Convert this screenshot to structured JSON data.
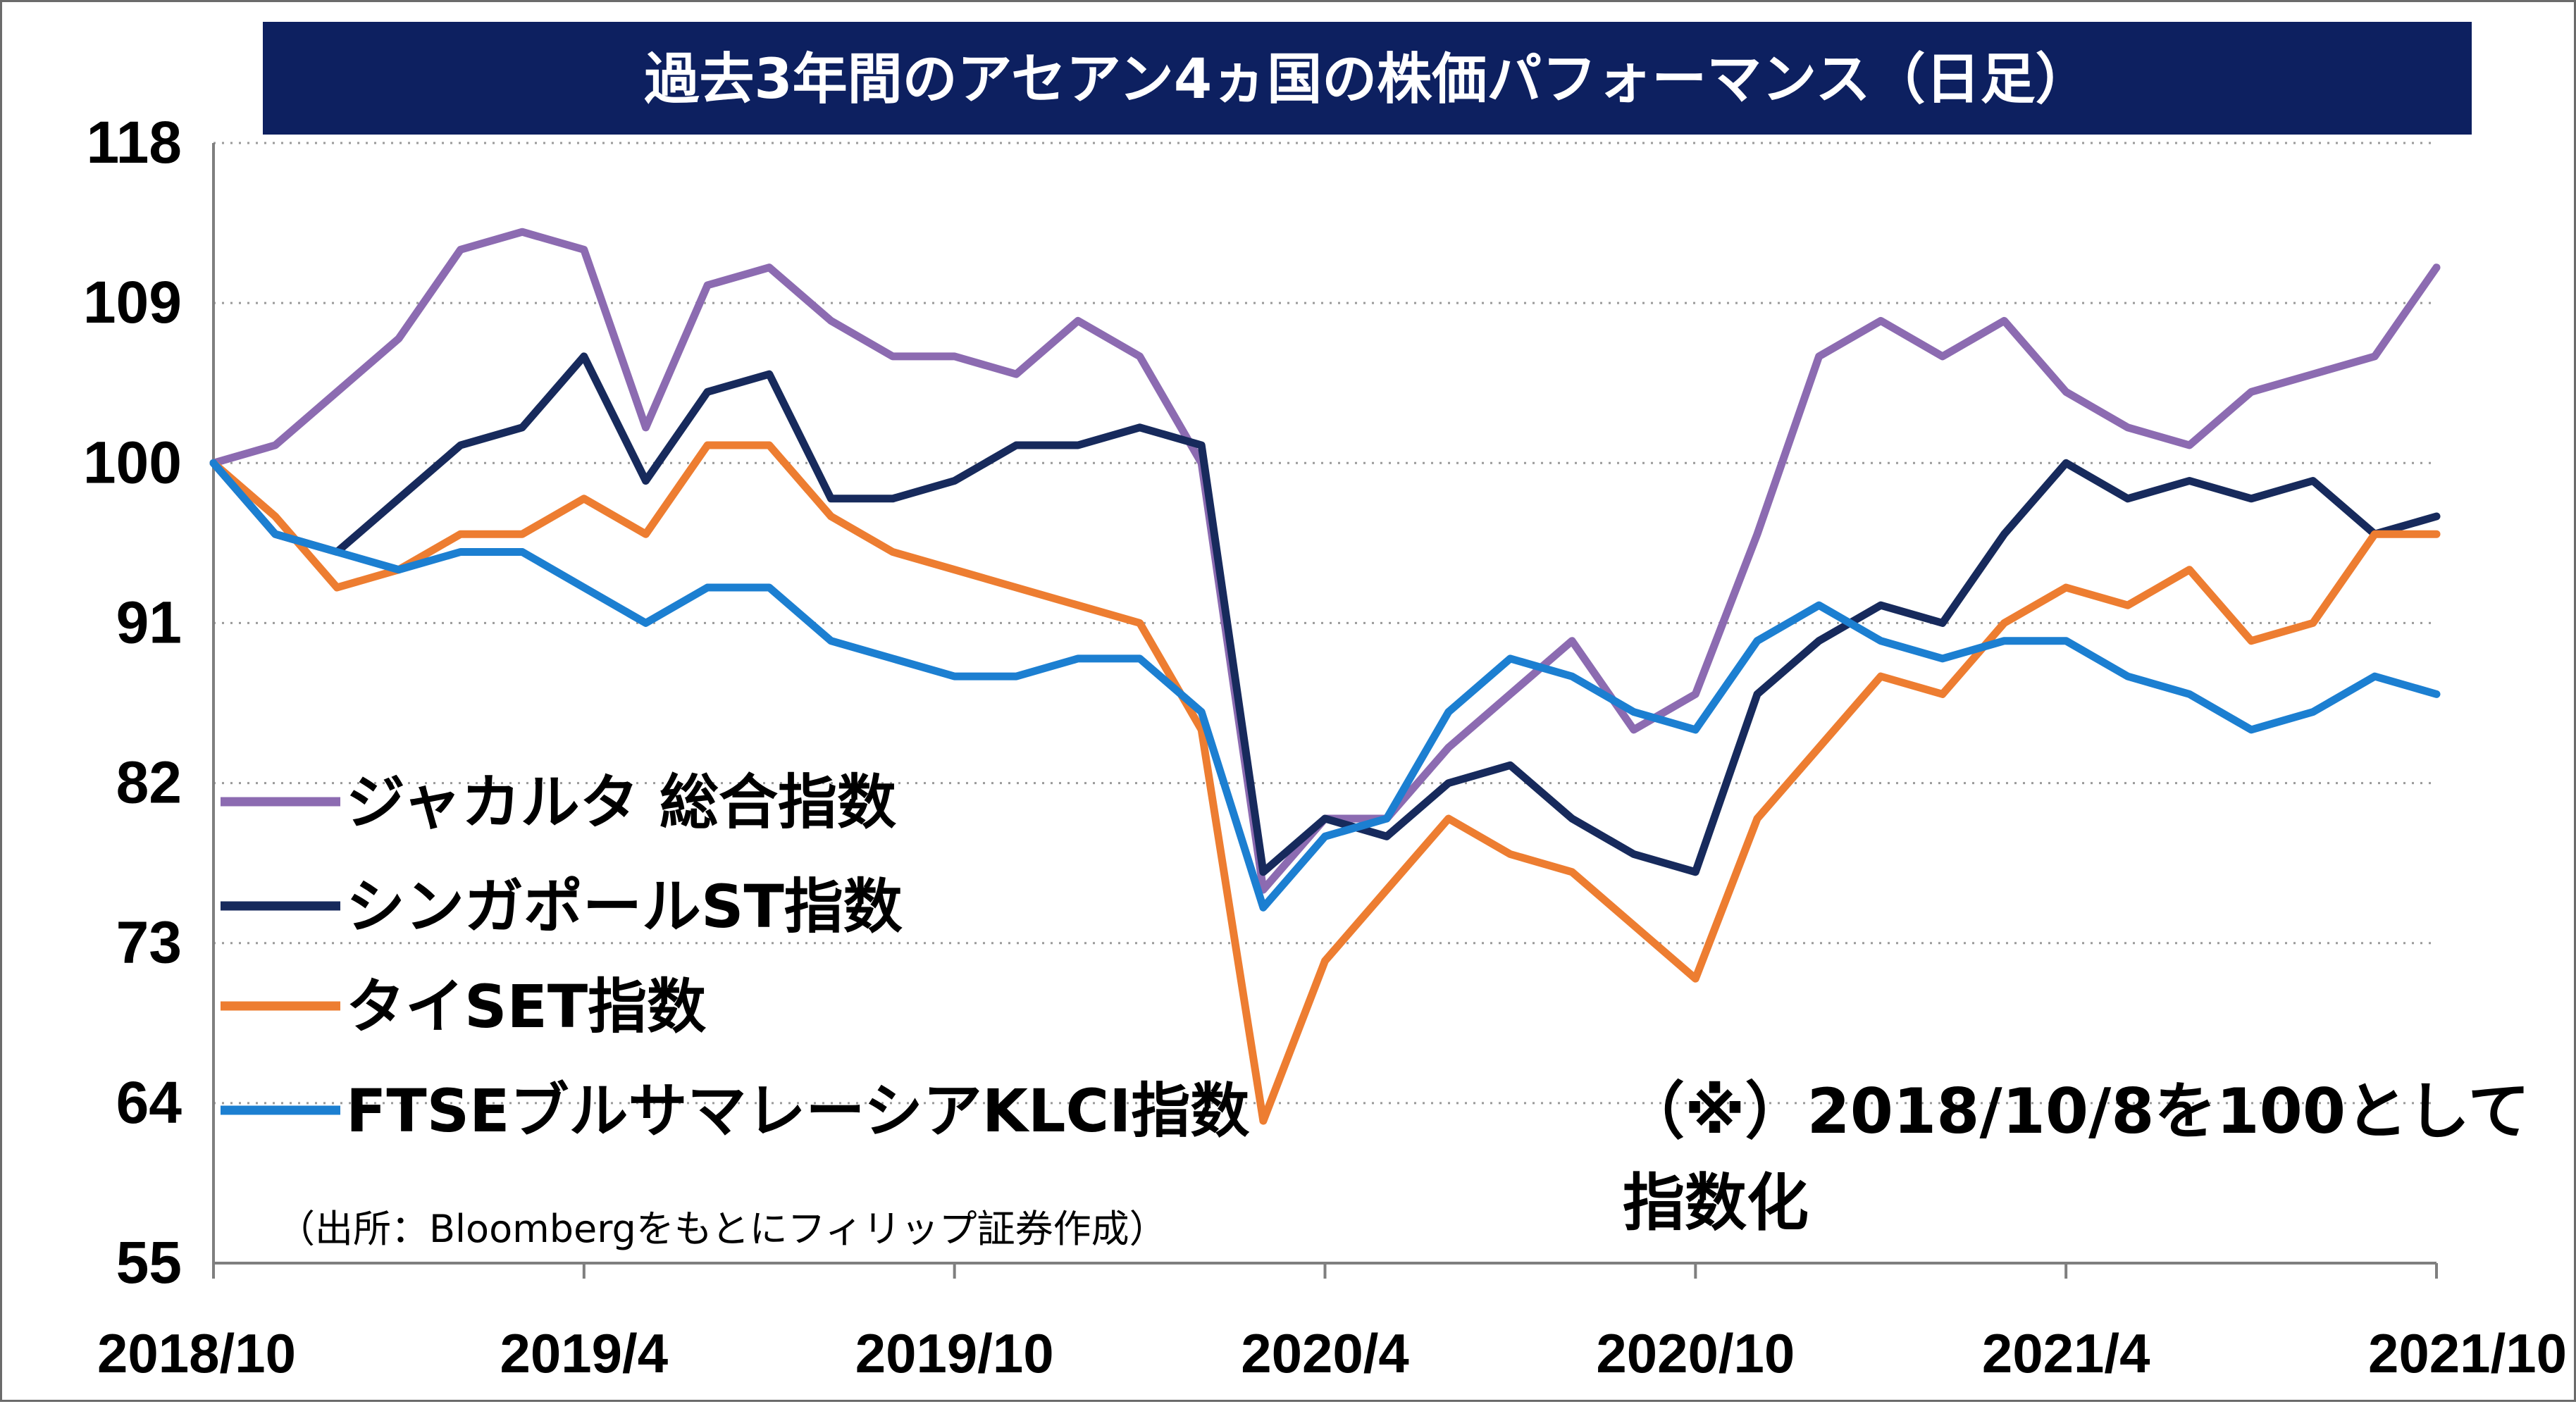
{
  "chart_data": {
    "type": "line",
    "title": "過去3年間のアセアン4ヵ国の株価パフォーマンス（日足）",
    "xlabel": "",
    "ylabel": "",
    "ylim": [
      55,
      118
    ],
    "y_ticks": [
      118,
      109,
      100,
      91,
      82,
      73,
      64,
      55
    ],
    "x_ticks": [
      "2018/10",
      "2019/4",
      "2019/10",
      "2020/4",
      "2020/10",
      "2021/4",
      "2021/10"
    ],
    "grid": true,
    "grid_style": "dotted horizontal",
    "legend_position": "center-left",
    "annotation": [
      "（※）2018/10/8を100として",
      "指数化"
    ],
    "source": "（出所：Bloombergをもとにフィリップ証券作成）",
    "x_axis_start": "2018/10",
    "x_axis_end": "2021/10",
    "series": [
      {
        "name": "ジャカルタ 総合指数",
        "color": "#8c6bb1",
        "points": [
          [
            "2018/10",
            100
          ],
          [
            "2018/11",
            101
          ],
          [
            "2018/12",
            104
          ],
          [
            "2019/1",
            107
          ],
          [
            "2019/2",
            112
          ],
          [
            "2019/3",
            113
          ],
          [
            "2019/4",
            112
          ],
          [
            "2019/5",
            102
          ],
          [
            "2019/6",
            110
          ],
          [
            "2019/7",
            111
          ],
          [
            "2019/8",
            108
          ],
          [
            "2019/9",
            106
          ],
          [
            "2019/10",
            106
          ],
          [
            "2019/11",
            105
          ],
          [
            "2019/12",
            108
          ],
          [
            "2020/1",
            106
          ],
          [
            "2020/2",
            100
          ],
          [
            "2020/3",
            76
          ],
          [
            "2020/4",
            80
          ],
          [
            "2020/5",
            80
          ],
          [
            "2020/6",
            84
          ],
          [
            "2020/7",
            87
          ],
          [
            "2020/8",
            90
          ],
          [
            "2020/9",
            85
          ],
          [
            "2020/10",
            87
          ],
          [
            "2020/11",
            96
          ],
          [
            "2020/12",
            106
          ],
          [
            "2021/1",
            108
          ],
          [
            "2021/2",
            106
          ],
          [
            "2021/3",
            108
          ],
          [
            "2021/4",
            104
          ],
          [
            "2021/5",
            102
          ],
          [
            "2021/6",
            101
          ],
          [
            "2021/7",
            104
          ],
          [
            "2021/8",
            105
          ],
          [
            "2021/9",
            106
          ],
          [
            "2021/10",
            111
          ]
        ]
      },
      {
        "name": "シンガポールST指数",
        "color": "#172a5c",
        "points": [
          [
            "2018/10",
            100
          ],
          [
            "2018/11",
            96
          ],
          [
            "2018/12",
            95
          ],
          [
            "2019/1",
            98
          ],
          [
            "2019/2",
            101
          ],
          [
            "2019/3",
            102
          ],
          [
            "2019/4",
            106
          ],
          [
            "2019/5",
            99
          ],
          [
            "2019/6",
            104
          ],
          [
            "2019/7",
            105
          ],
          [
            "2019/8",
            98
          ],
          [
            "2019/9",
            98
          ],
          [
            "2019/10",
            99
          ],
          [
            "2019/11",
            101
          ],
          [
            "2019/12",
            101
          ],
          [
            "2020/1",
            102
          ],
          [
            "2020/2",
            101
          ],
          [
            "2020/3",
            77
          ],
          [
            "2020/4",
            80
          ],
          [
            "2020/5",
            79
          ],
          [
            "2020/6",
            82
          ],
          [
            "2020/7",
            83
          ],
          [
            "2020/8",
            80
          ],
          [
            "2020/9",
            78
          ],
          [
            "2020/10",
            77
          ],
          [
            "2020/11",
            87
          ],
          [
            "2020/12",
            90
          ],
          [
            "2021/1",
            92
          ],
          [
            "2021/2",
            91
          ],
          [
            "2021/3",
            96
          ],
          [
            "2021/4",
            100
          ],
          [
            "2021/5",
            98
          ],
          [
            "2021/6",
            99
          ],
          [
            "2021/7",
            98
          ],
          [
            "2021/8",
            99
          ],
          [
            "2021/9",
            96
          ],
          [
            "2021/10",
            97
          ]
        ]
      },
      {
        "name": "タイSET指数",
        "color": "#ed7d31",
        "points": [
          [
            "2018/10",
            100
          ],
          [
            "2018/11",
            97
          ],
          [
            "2018/12",
            93
          ],
          [
            "2019/1",
            94
          ],
          [
            "2019/2",
            96
          ],
          [
            "2019/3",
            96
          ],
          [
            "2019/4",
            98
          ],
          [
            "2019/5",
            96
          ],
          [
            "2019/6",
            101
          ],
          [
            "2019/7",
            101
          ],
          [
            "2019/8",
            97
          ],
          [
            "2019/9",
            95
          ],
          [
            "2019/10",
            94
          ],
          [
            "2019/11",
            93
          ],
          [
            "2019/12",
            92
          ],
          [
            "2020/1",
            91
          ],
          [
            "2020/2",
            85
          ],
          [
            "2020/3",
            63
          ],
          [
            "2020/4",
            72
          ],
          [
            "2020/5",
            76
          ],
          [
            "2020/6",
            80
          ],
          [
            "2020/7",
            78
          ],
          [
            "2020/8",
            77
          ],
          [
            "2020/9",
            74
          ],
          [
            "2020/10",
            71
          ],
          [
            "2020/11",
            80
          ],
          [
            "2020/12",
            84
          ],
          [
            "2021/1",
            88
          ],
          [
            "2021/2",
            87
          ],
          [
            "2021/3",
            91
          ],
          [
            "2021/4",
            93
          ],
          [
            "2021/5",
            92
          ],
          [
            "2021/6",
            94
          ],
          [
            "2021/7",
            90
          ],
          [
            "2021/8",
            91
          ],
          [
            "2021/9",
            96
          ],
          [
            "2021/10",
            96
          ]
        ]
      },
      {
        "name": "FTSEブルサマレーシアKLCI指数",
        "color": "#1c7fd1",
        "points": [
          [
            "2018/10",
            100
          ],
          [
            "2018/11",
            96
          ],
          [
            "2018/12",
            95
          ],
          [
            "2019/1",
            94
          ],
          [
            "2019/2",
            95
          ],
          [
            "2019/3",
            95
          ],
          [
            "2019/4",
            93
          ],
          [
            "2019/5",
            91
          ],
          [
            "2019/6",
            93
          ],
          [
            "2019/7",
            93
          ],
          [
            "2019/8",
            90
          ],
          [
            "2019/9",
            89
          ],
          [
            "2019/10",
            88
          ],
          [
            "2019/11",
            88
          ],
          [
            "2019/12",
            89
          ],
          [
            "2020/1",
            89
          ],
          [
            "2020/2",
            86
          ],
          [
            "2020/3",
            75
          ],
          [
            "2020/4",
            79
          ],
          [
            "2020/5",
            80
          ],
          [
            "2020/6",
            86
          ],
          [
            "2020/7",
            89
          ],
          [
            "2020/8",
            88
          ],
          [
            "2020/9",
            86
          ],
          [
            "2020/10",
            85
          ],
          [
            "2020/11",
            90
          ],
          [
            "2020/12",
            92
          ],
          [
            "2021/1",
            90
          ],
          [
            "2021/2",
            89
          ],
          [
            "2021/3",
            90
          ],
          [
            "2021/4",
            90
          ],
          [
            "2021/5",
            88
          ],
          [
            "2021/6",
            87
          ],
          [
            "2021/7",
            85
          ],
          [
            "2021/8",
            86
          ],
          [
            "2021/9",
            88
          ],
          [
            "2021/10",
            87
          ]
        ]
      }
    ]
  }
}
